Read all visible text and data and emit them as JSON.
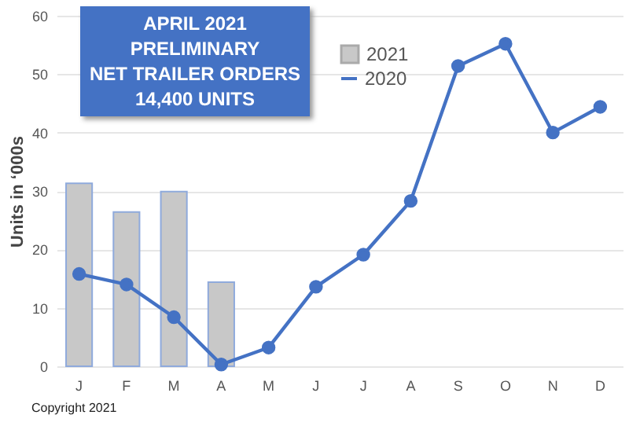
{
  "chart_data": {
    "type": "bar",
    "title": "APRIL 2021\nPRELIMINARY\nNET TRAILER ORDERS\n14,400 UNITS",
    "ylabel": "Units in ‘000s",
    "categories": [
      "J",
      "F",
      "M",
      "A",
      "M",
      "J",
      "J",
      "A",
      "S",
      "O",
      "N",
      "D"
    ],
    "series": [
      {
        "name": "2021",
        "color": "#c8c8c8",
        "values": [
          31.3,
          26.4,
          29.9,
          14.4,
          null,
          null,
          null,
          null,
          null,
          null,
          null,
          null
        ]
      },
      {
        "name": "2020",
        "type": "line",
        "color": "#4472c4",
        "marker": "circle",
        "values": [
          15.8,
          14.0,
          8.4,
          0.3,
          3.2,
          13.6,
          19.1,
          28.3,
          51.4,
          55.2,
          40.0,
          44.4
        ]
      }
    ],
    "ylim": [
      0,
      60
    ],
    "yticks": [
      0,
      10,
      20,
      30,
      40,
      50,
      60
    ],
    "grid": "y",
    "legend": "top",
    "annotations": [
      "Copyright 2021"
    ]
  }
}
